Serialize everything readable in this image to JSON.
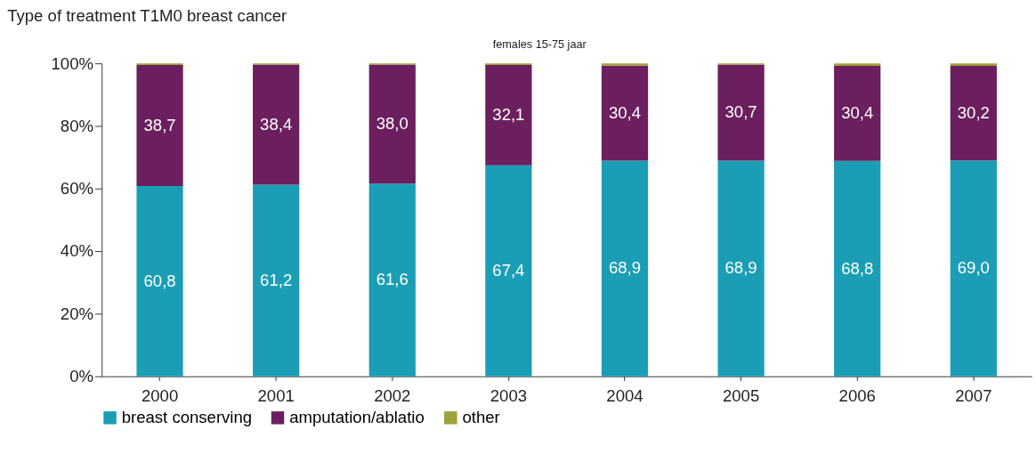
{
  "chart_data": {
    "type": "bar",
    "stacked": true,
    "title": "Type of treatment T1M0 breast cancer",
    "subtitle": "females 15-75 jaar",
    "categories": [
      "2000",
      "2001",
      "2002",
      "2003",
      "2004",
      "2005",
      "2006",
      "2007"
    ],
    "series": [
      {
        "name": "breast conserving",
        "color": "#1b9eb5",
        "values": [
          60.8,
          61.2,
          61.6,
          67.4,
          68.9,
          68.9,
          68.8,
          69.0
        ],
        "value_labels": [
          "60,8",
          "61,2",
          "61,6",
          "67,4",
          "68,9",
          "68,9",
          "68,8",
          "69,0"
        ]
      },
      {
        "name": "amputation/ablatio",
        "color": "#6b1f5e",
        "values": [
          38.7,
          38.4,
          38.0,
          32.1,
          30.4,
          30.7,
          30.4,
          30.2
        ],
        "value_labels": [
          "38,7",
          "38,4",
          "38,0",
          "32,1",
          "30,4",
          "30,7",
          "30,4",
          "30,2"
        ]
      },
      {
        "name": "other",
        "color": "#9ca23a",
        "values": [
          0.5,
          0.4,
          0.4,
          0.5,
          0.7,
          0.4,
          0.8,
          0.8
        ]
      }
    ],
    "ylim": [
      0,
      100
    ],
    "yticks": [
      {
        "value": 0,
        "label": "0%"
      },
      {
        "value": 20,
        "label": "20%"
      },
      {
        "value": 40,
        "label": "40%"
      },
      {
        "value": 60,
        "label": "60%"
      },
      {
        "value": 80,
        "label": "80%"
      },
      {
        "value": 100,
        "label": "100%"
      }
    ],
    "grid": false,
    "legend": "bottom left"
  }
}
